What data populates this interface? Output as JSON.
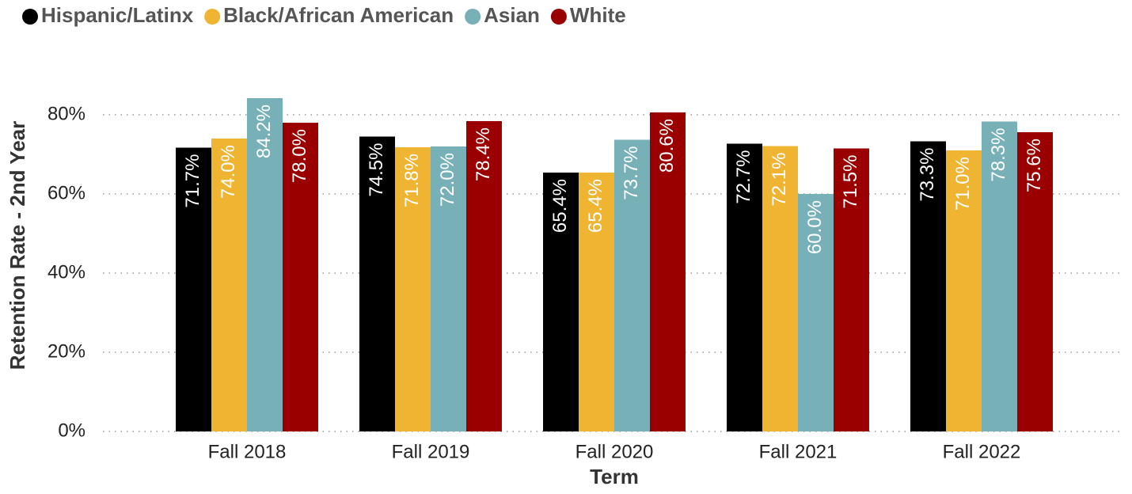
{
  "chart_data": {
    "type": "bar",
    "axis_labels": {
      "y": "Retention Rate - 2nd Year",
      "x": "Term"
    },
    "categories": [
      "Fall 2018",
      "Fall 2019",
      "Fall 2020",
      "Fall 2021",
      "Fall 2022"
    ],
    "series": [
      {
        "name": "Hispanic/Latinx",
        "color": "#000000",
        "values": [
          71.7,
          74.5,
          65.4,
          72.7,
          73.3
        ],
        "value_labels": [
          "71.7%",
          "74.5%",
          "65.4%",
          "72.7%",
          "73.3%"
        ]
      },
      {
        "name": "Black/African American",
        "color": "#f0b433",
        "values": [
          74.0,
          71.8,
          65.4,
          72.1,
          71.0
        ],
        "value_labels": [
          "74.0%",
          "71.8%",
          "65.4%",
          "72.1%",
          "71.0%"
        ]
      },
      {
        "name": "Asian",
        "color": "#78b0b8",
        "values": [
          84.2,
          72.0,
          73.7,
          60.0,
          78.3
        ],
        "value_labels": [
          "84.2%",
          "72.0%",
          "73.7%",
          "60.0%",
          "78.3%"
        ]
      },
      {
        "name": "White",
        "color": "#9b0000",
        "values": [
          78.0,
          78.4,
          80.6,
          71.5,
          75.6
        ],
        "value_labels": [
          "78.0%",
          "78.4%",
          "80.6%",
          "71.5%",
          "75.6%"
        ]
      }
    ],
    "ylim": [
      0,
      100
    ],
    "yticks": [
      {
        "value": 0,
        "label": "0%"
      },
      {
        "value": 20,
        "label": "20%"
      },
      {
        "value": 40,
        "label": "40%"
      },
      {
        "value": 60,
        "label": "60%"
      },
      {
        "value": 80,
        "label": "80%"
      }
    ],
    "grid": true,
    "legend": "top"
  }
}
